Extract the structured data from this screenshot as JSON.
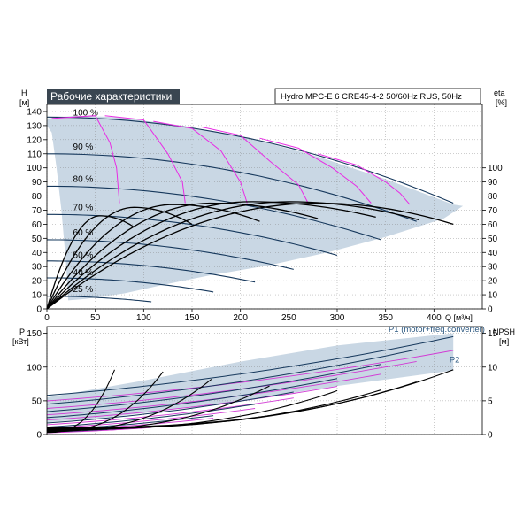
{
  "title": "Рабочие характеристики",
  "product": "Hydro MPC-E 6 CRE45-4-2 50/60Hz RUS, 50Hz",
  "colors": {
    "title_bg": "#3a4651",
    "envelope": "#c9d7e4",
    "envelope_edge": "#2e5a82",
    "qh": "#16385c",
    "efficiency": "#000000",
    "iso_efficiency": "#e82ce4",
    "power_pink": "#d23ad4",
    "grid": "#808080"
  },
  "chart_data": [
    {
      "type": "line",
      "name": "qh",
      "xlabel": "Q [м³/ч]",
      "ylabel": "H",
      "ylabel_unit": "[м]",
      "y2label": "eta",
      "y2label_unit": "[%]",
      "xlim": [
        0,
        450
      ],
      "ylim": [
        0,
        145
      ],
      "y2lim": [
        0,
        145
      ],
      "xticks": [
        0,
        50,
        100,
        150,
        200,
        250,
        300,
        350,
        400
      ],
      "yticks": [
        0,
        10,
        20,
        30,
        40,
        50,
        60,
        70,
        80,
        90,
        100,
        110,
        120,
        130,
        140
      ],
      "y2ticks": [
        0,
        10,
        20,
        30,
        40,
        50,
        60,
        70,
        80,
        90,
        100
      ],
      "speed_labels": [
        {
          "text": "100 %",
          "q": 27,
          "h": 137
        },
        {
          "text": "90 %",
          "q": 27,
          "h": 113
        },
        {
          "text": "80 %",
          "q": 27,
          "h": 90
        },
        {
          "text": "70 %",
          "q": 27,
          "h": 70
        },
        {
          "text": "60 %",
          "q": 27,
          "h": 52
        },
        {
          "text": "50 %",
          "q": 27,
          "h": 36
        },
        {
          "text": "40 %",
          "q": 27,
          "h": 24
        },
        {
          "text": "25 %",
          "q": 27,
          "h": 12
        }
      ],
      "envelope": [
        [
          0,
          135
        ],
        [
          30,
          137
        ],
        [
          70,
          136
        ],
        [
          140,
          130
        ],
        [
          210,
          121
        ],
        [
          280,
          108
        ],
        [
          350,
          92
        ],
        [
          420,
          74
        ],
        [
          430,
          73
        ],
        [
          410,
          64
        ],
        [
          350,
          51
        ],
        [
          290,
          40
        ],
        [
          230,
          31
        ],
        [
          170,
          24
        ],
        [
          120,
          17
        ],
        [
          80,
          11
        ],
        [
          40,
          7
        ],
        [
          22,
          6
        ],
        [
          20,
          30
        ],
        [
          15,
          70
        ],
        [
          10,
          100
        ],
        [
          5,
          125
        ],
        [
          0,
          130
        ]
      ],
      "qh_curves": [
        {
          "qmax": 420,
          "h0": 136,
          "hend": 75
        },
        {
          "qmax": 382,
          "h0": 110,
          "hend": 62
        },
        {
          "qmax": 345,
          "h0": 87,
          "hend": 49
        },
        {
          "qmax": 300,
          "h0": 67,
          "hend": 38
        },
        {
          "qmax": 255,
          "h0": 49,
          "hend": 28
        },
        {
          "qmax": 215,
          "h0": 34,
          "hend": 19
        },
        {
          "qmax": 172,
          "h0": 22,
          "hend": 12
        },
        {
          "qmax": 108,
          "h0": 9,
          "hend": 5
        }
      ],
      "iso_efficiency_curves": [
        {
          "points": [
            [
              5,
              135
            ],
            [
              50,
              137
            ],
            [
              65,
              118
            ],
            [
              72,
              100
            ],
            [
              75,
              75
            ]
          ]
        },
        {
          "points": [
            [
              60,
              137
            ],
            [
              100,
              134
            ],
            [
              125,
              110
            ],
            [
              140,
              90
            ],
            [
              143,
              75
            ]
          ]
        },
        {
          "points": [
            [
              110,
              133
            ],
            [
              150,
              128
            ],
            [
              180,
              112
            ],
            [
              200,
              90
            ],
            [
              207,
              75
            ]
          ]
        },
        {
          "points": [
            [
              160,
              129
            ],
            [
              200,
              123
            ],
            [
              230,
              105
            ],
            [
              260,
              88
            ],
            [
              270,
              75
            ]
          ]
        },
        {
          "points": [
            [
              220,
              121
            ],
            [
              260,
              114
            ],
            [
              295,
              100
            ],
            [
              320,
              87
            ],
            [
              335,
              75
            ]
          ]
        },
        {
          "points": [
            [
              280,
              110
            ],
            [
              320,
              102
            ],
            [
              350,
              90
            ],
            [
              365,
              82
            ],
            [
              375,
              74
            ]
          ]
        }
      ],
      "efficiency_curves": [
        {
          "qmax": 90,
          "peak_q": 55,
          "peak": 66,
          "end": 58
        },
        {
          "qmax": 150,
          "peak_q": 90,
          "peak": 72,
          "end": 60
        },
        {
          "qmax": 220,
          "peak_q": 130,
          "peak": 74,
          "end": 62
        },
        {
          "qmax": 280,
          "peak_q": 170,
          "peak": 75,
          "end": 64
        },
        {
          "qmax": 340,
          "peak_q": 210,
          "peak": 76,
          "end": 65
        },
        {
          "qmax": 385,
          "peak_q": 250,
          "peak": 76,
          "end": 63
        },
        {
          "qmax": 420,
          "peak_q": 280,
          "peak": 75,
          "end": 60
        }
      ]
    },
    {
      "type": "line",
      "name": "power",
      "ylabel": "P",
      "ylabel_unit": "[кВт]",
      "y2label": "NPSH",
      "y2label_unit": "[м]",
      "xlim": [
        0,
        450
      ],
      "ylim": [
        0,
        160
      ],
      "y2lim": [
        0,
        16
      ],
      "yticks": [
        0,
        50,
        100,
        150
      ],
      "y2ticks": [
        0,
        5,
        10,
        15
      ],
      "series_labels": [
        {
          "text": "P1 (motor+freq.converter)",
          "q": 353,
          "p": 152
        },
        {
          "text": "P2",
          "q": 416,
          "p": 107
        }
      ],
      "envelope": [
        [
          0,
          55
        ],
        [
          100,
          80
        ],
        [
          200,
          108
        ],
        [
          300,
          132
        ],
        [
          420,
          150
        ],
        [
          420,
          95
        ],
        [
          300,
          72
        ],
        [
          200,
          50
        ],
        [
          120,
          35
        ],
        [
          60,
          25
        ],
        [
          0,
          18
        ]
      ],
      "p1_curves": [
        {
          "qmax": 420,
          "p0": 58,
          "pend": 145
        },
        {
          "qmax": 382,
          "p0": 45,
          "pend": 126
        },
        {
          "qmax": 345,
          "p0": 34,
          "pend": 104
        },
        {
          "qmax": 300,
          "p0": 25,
          "pend": 83
        },
        {
          "qmax": 255,
          "p0": 17,
          "pend": 63
        },
        {
          "qmax": 215,
          "p0": 11,
          "pend": 45
        },
        {
          "qmax": 172,
          "p0": 7,
          "pend": 28
        },
        {
          "qmax": 108,
          "p0": 3,
          "pend": 12
        }
      ],
      "npsh_curves": [
        {
          "qmax": 420,
          "n0": 1.0,
          "nend": 9.6
        },
        {
          "qmax": 382,
          "n0": 0.9,
          "nend": 7.8
        },
        {
          "qmax": 345,
          "n0": 0.8,
          "nend": 6.6
        },
        {
          "qmax": 300,
          "n0": 0.7,
          "nend": 6.5
        },
        {
          "qmax": 230,
          "n0": 0.6,
          "nend": 7.2
        },
        {
          "qmax": 170,
          "n0": 0.5,
          "nend": 8.2
        },
        {
          "qmax": 120,
          "n0": 0.4,
          "nend": 9.3
        },
        {
          "qmax": 70,
          "n0": 0.3,
          "nend": 9.6
        }
      ]
    }
  ]
}
